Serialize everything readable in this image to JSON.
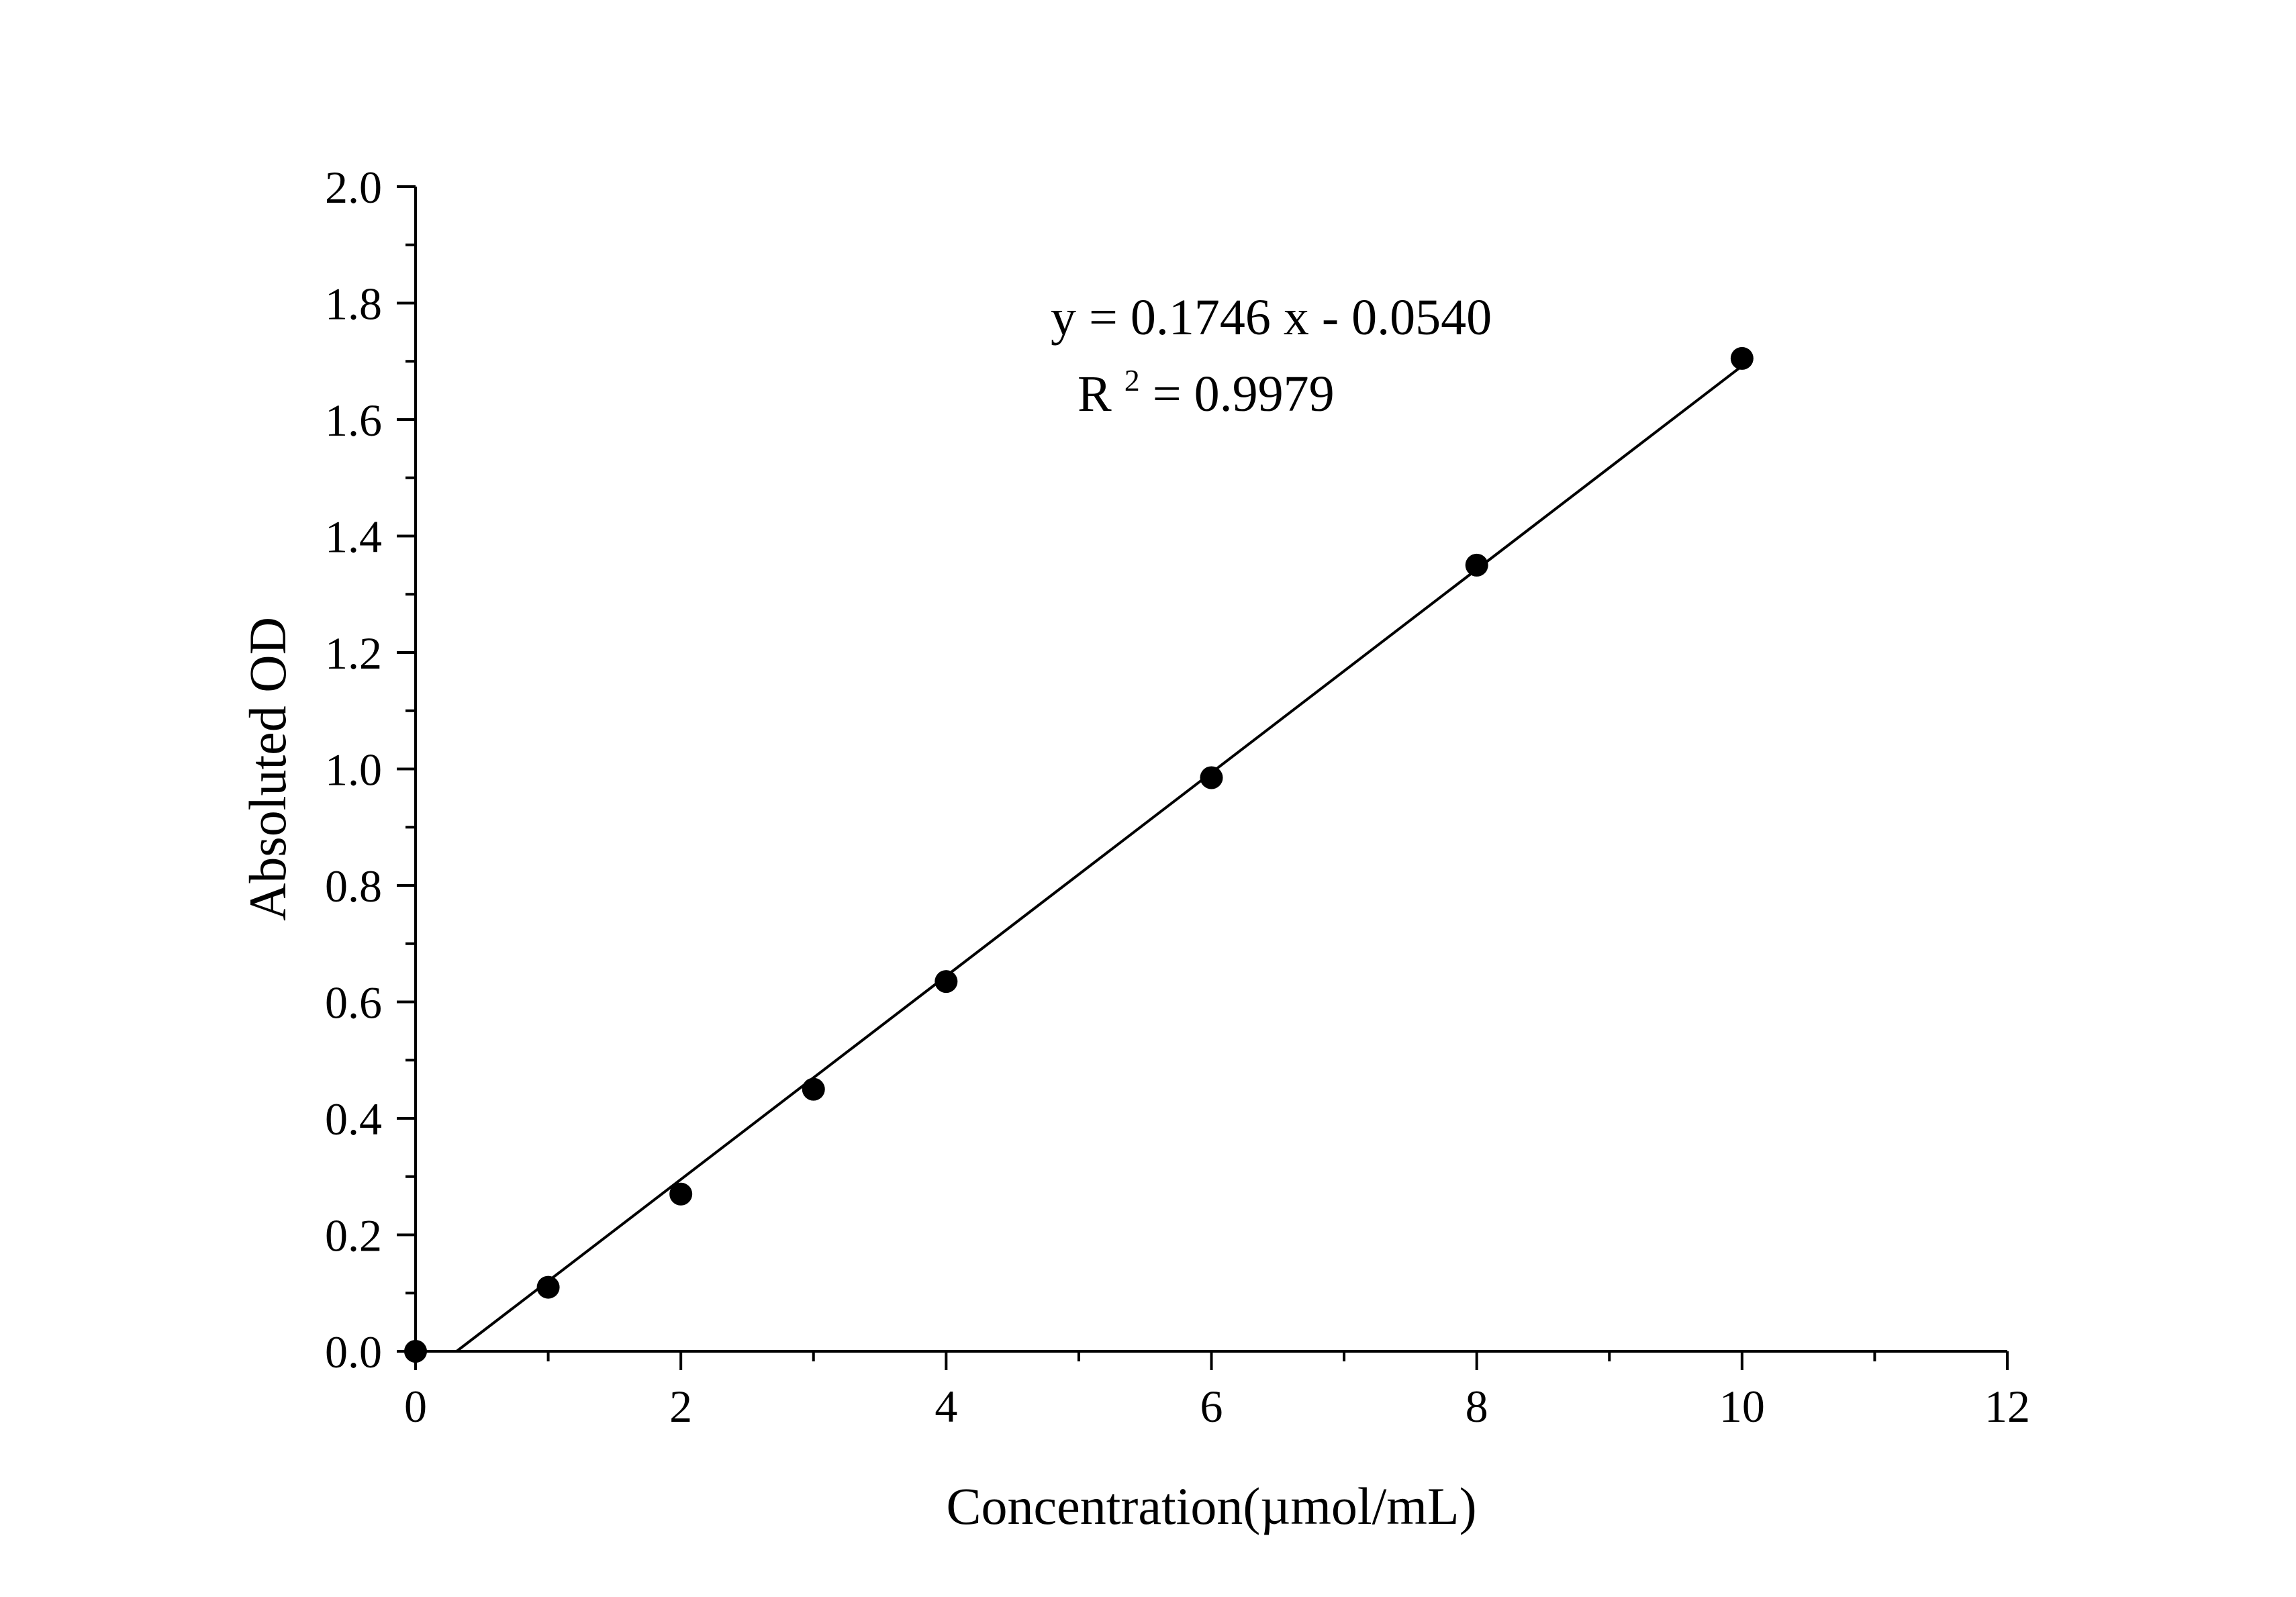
{
  "chart_data": {
    "type": "scatter",
    "title": "",
    "xlabel": "Concentration(µmol/mL)",
    "ylabel": "Absoluted OD",
    "xlim": [
      0,
      12
    ],
    "ylim": [
      0,
      2.0
    ],
    "x_ticks": [
      0,
      2,
      4,
      6,
      8,
      10,
      12
    ],
    "x_tick_labels": [
      "0",
      "2",
      "4",
      "6",
      "8",
      "10",
      "12"
    ],
    "x_minor_ticks": [
      1,
      3,
      5,
      7,
      9,
      11
    ],
    "y_ticks": [
      0,
      0.2,
      0.4,
      0.6,
      0.8,
      1.0,
      1.2,
      1.4,
      1.6,
      1.8,
      2.0
    ],
    "y_tick_labels": [
      "0.0",
      "0.2",
      "0.4",
      "0.6",
      "0.8",
      "1.0",
      "1.2",
      "1.4",
      "1.6",
      "1.8",
      "2.0"
    ],
    "y_minor_ticks": [
      0.1,
      0.3,
      0.5,
      0.7,
      0.9,
      1.1,
      1.3,
      1.5,
      1.7,
      1.9
    ],
    "grid": false,
    "series": [
      {
        "x": [
          0,
          1,
          2,
          3,
          4,
          6,
          8,
          10
        ],
        "y": [
          0.0,
          0.11,
          0.27,
          0.45,
          0.635,
          0.985,
          1.35,
          1.705
        ],
        "marker": "circle",
        "color": "#000000"
      }
    ],
    "fit_line": {
      "slope": 0.1746,
      "intercept": -0.054,
      "x_range": [
        0.31,
        10
      ],
      "color": "#000000"
    },
    "annotations": {
      "equation": "y = 0.1746 x - 0.0540",
      "r2_label": "R",
      "r2_superscript": "2",
      "r2_value": " = 0.9979"
    }
  }
}
